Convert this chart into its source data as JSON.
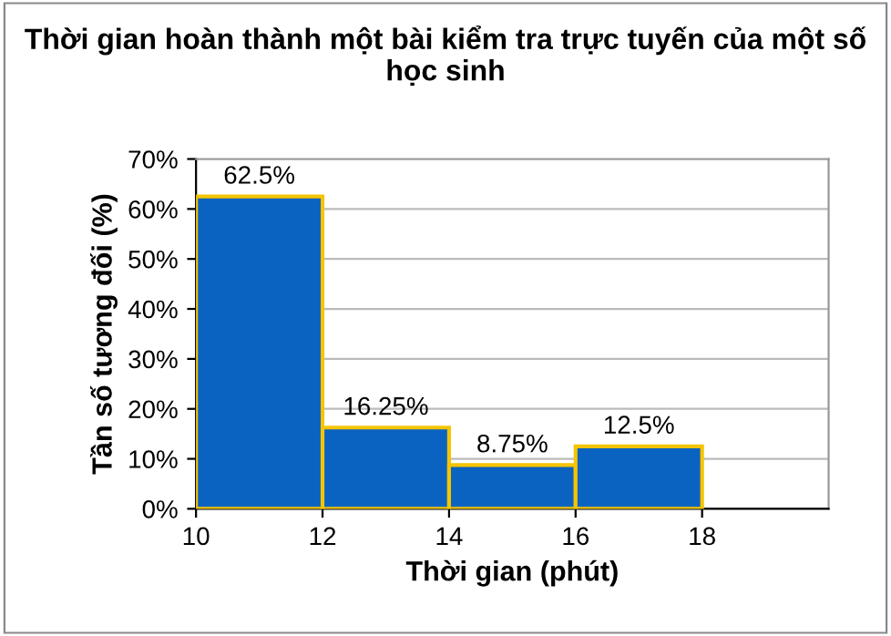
{
  "chart_data": {
    "type": "histogram",
    "title": "Thời gian hoàn thành một bài kiểm tra trực tuyến của một số học sinh",
    "xlabel": "Thời gian (phút)",
    "ylabel": "Tần số tương đối (%)",
    "bins": [
      10,
      12,
      14,
      16,
      18
    ],
    "values": [
      62.5,
      16.25,
      8.75,
      12.5
    ],
    "value_labels": [
      "62.5%",
      "16.25%",
      "8.75%",
      "12.5%"
    ],
    "color": "#0b63c1",
    "xlim": [
      10,
      20
    ],
    "xticks": [
      10,
      12,
      14,
      16,
      18
    ],
    "ylim": [
      0,
      70
    ],
    "yticks": [
      {
        "value": 0,
        "label": "0%"
      },
      {
        "value": 10,
        "label": "10%"
      },
      {
        "value": 20,
        "label": "20%"
      },
      {
        "value": 30,
        "label": "30%"
      },
      {
        "value": 40,
        "label": "40%"
      },
      {
        "value": 50,
        "label": "50%"
      },
      {
        "value": 60,
        "label": "60%"
      },
      {
        "value": 70,
        "label": "70%"
      }
    ],
    "grid": "y"
  }
}
